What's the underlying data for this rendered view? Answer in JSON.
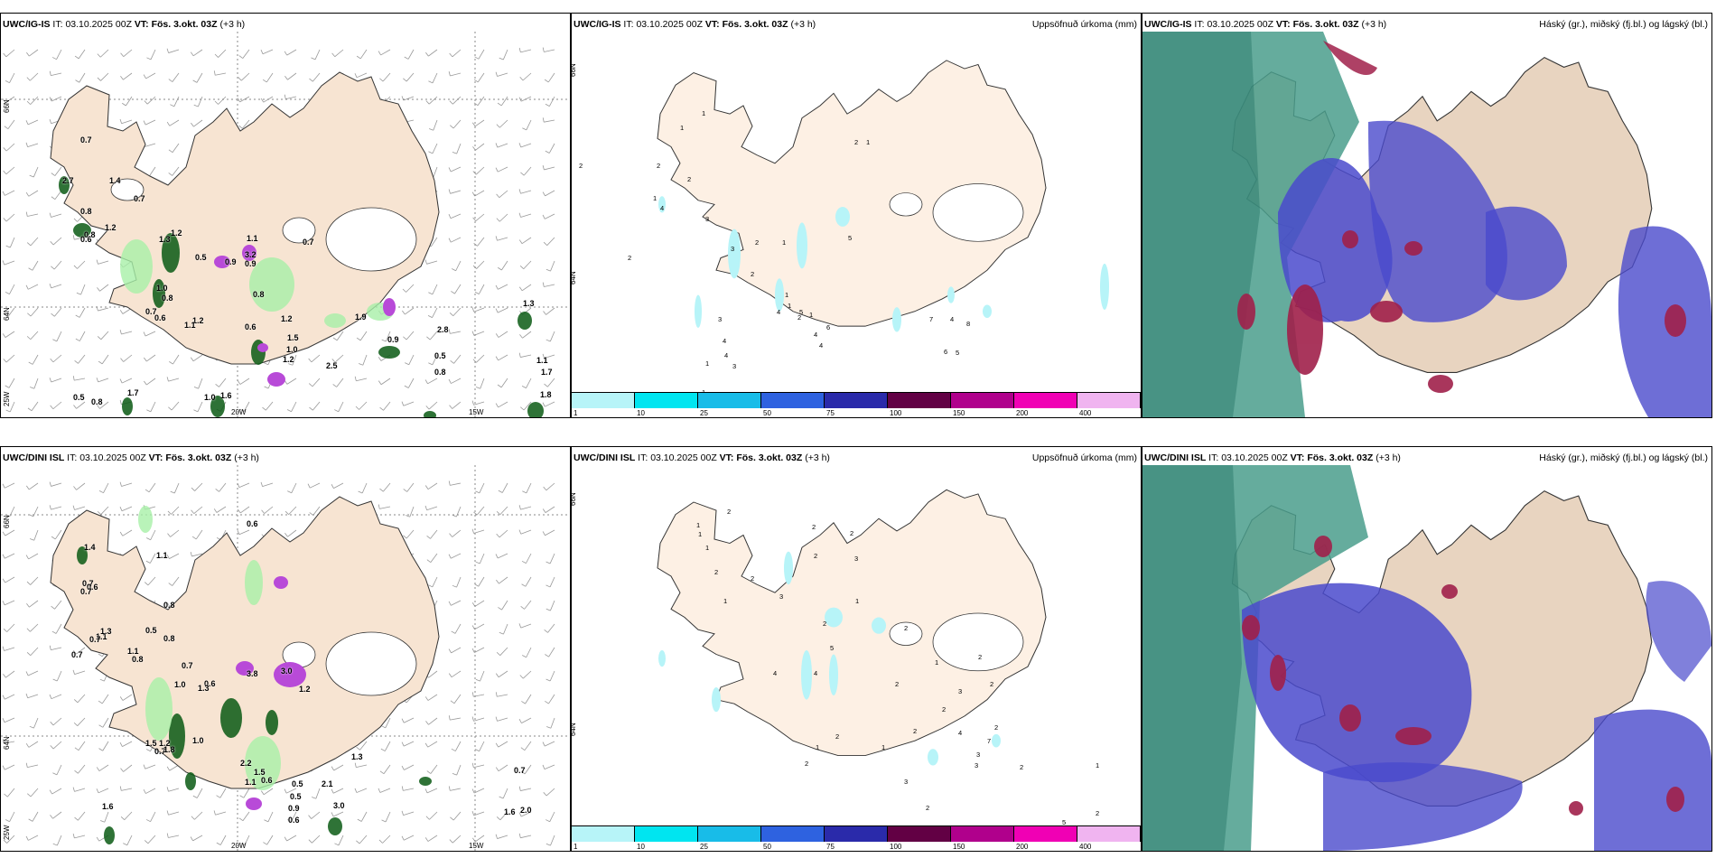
{
  "panels": {
    "top_left": {
      "model": "UWC/IG-IS",
      "it_label": "IT:",
      "it_value": "03.10.2025 00Z",
      "vt_label": "VT:",
      "vt_value": "Fös. 3.okt. 03Z",
      "lead": "(+3 h)"
    },
    "top_mid": {
      "model": "UWC/IG-IS",
      "it_label": "IT:",
      "it_value": "03.10.2025 00Z",
      "vt_label": "VT:",
      "vt_value": "Fös. 3.okt. 03Z",
      "lead": "(+3 h)",
      "title_right": "Uppsöfnuð úrkoma (mm)"
    },
    "top_right": {
      "model": "UWC/IG-IS",
      "it_label": "IT:",
      "it_value": "03.10.2025 00Z",
      "vt_label": "VT:",
      "vt_value": "Fös. 3.okt. 03Z",
      "lead": "(+3 h)",
      "title_right": "Háský (gr.), miðský (fj.bl.) og lágský (bl.)"
    },
    "bot_left": {
      "model": "UWC/DINI ISL",
      "it_label": "IT:",
      "it_value": "03.10.2025 00Z",
      "vt_label": "VT:",
      "vt_value": "Fös. 3.okt. 03Z",
      "lead": "(+3 h)"
    },
    "bot_mid": {
      "model": "UWC/DINI ISL",
      "it_label": "IT:",
      "it_value": "03.10.2025 00Z",
      "vt_label": "VT:",
      "vt_value": "Fös. 3.okt. 03Z",
      "lead": "(+3 h)",
      "title_right": "Uppsöfnuð úrkoma (mm)"
    },
    "bot_right": {
      "model": "UWC/DINI ISL",
      "it_label": "IT:",
      "it_value": "03.10.2025 00Z",
      "vt_label": "VT:",
      "vt_value": "Fös. 3.okt. 03Z",
      "lead": "(+3 h)",
      "title_right": "Háský (gr.), miðský (fj.bl.) og lágský (bl.)"
    }
  },
  "grid_labels": {
    "lat_66": "66N",
    "lat_64": "64N",
    "lon_25": "25W",
    "lon_20": "20W",
    "lon_15": "15W"
  },
  "colorbar": {
    "labels": [
      "1",
      "10",
      "25",
      "50",
      "75",
      "100",
      "150",
      "200",
      "400"
    ],
    "colors": [
      "#b7f4f8",
      "#00e5f0",
      "#18bce8",
      "#2e62e0",
      "#2a2aaa",
      "#620044",
      "#b0008c",
      "#f000b4",
      "#f0b4f0"
    ]
  },
  "gust_values_top": [
    "0.7",
    "2.7",
    "1.4",
    "0.7",
    "0.8",
    "1.2",
    "0.6",
    "1.2",
    "0.8",
    "1.3",
    "0.5",
    "0.9",
    "1.1",
    "3.2",
    "0.7",
    "0.9",
    "0.8",
    "1.0",
    "0.8",
    "0.6",
    "0.7",
    "1.2",
    "1.1",
    "0.6",
    "1.2",
    "1.5",
    "1.0",
    "1.2",
    "1.9",
    "2.5",
    "2.8",
    "0.9",
    "0.5",
    "0.8",
    "1.1",
    "1.7",
    "0.5",
    "0.8",
    "1.7",
    "1.0",
    "1.6",
    "1.3",
    "1.8"
  ],
  "gust_values_bot": [
    "0.6",
    "1.4",
    "1.1",
    "0.7",
    "0.6",
    "0.7",
    "0.8",
    "0.5",
    "0.8",
    "0.7",
    "1.1",
    "1.3",
    "0.7",
    "1.1",
    "0.8",
    "0.7",
    "1.0",
    "0.6",
    "1.3",
    "3.8",
    "3.0",
    "1.2",
    "1.2",
    "1.5",
    "1.0",
    "0.7",
    "1.8",
    "2.2",
    "1.5",
    "1.1",
    "0.6",
    "0.5",
    "1.6",
    "2.1",
    "0.9",
    "0.6",
    "3.0",
    "0.5",
    "1.3",
    "0.7",
    "2.0",
    "1.6"
  ],
  "precip_values_top": [
    "1",
    "2",
    "1",
    "2",
    "1",
    "2",
    "2",
    "3",
    "1",
    "4",
    "5",
    "3",
    "2",
    "1",
    "1",
    "4",
    "2",
    "1",
    "4",
    "4",
    "4",
    "5",
    "1",
    "1",
    "3",
    "2",
    "1",
    "5",
    "6",
    "7",
    "6",
    "8",
    "2",
    "3",
    "4",
    "4"
  ],
  "precip_values_bot": [
    "1",
    "2",
    "1",
    "2",
    "2",
    "1",
    "2",
    "3",
    "2",
    "1",
    "2",
    "3",
    "2",
    "1",
    "2",
    "4",
    "5",
    "4",
    "1",
    "2",
    "2",
    "3",
    "2",
    "2",
    "1",
    "2",
    "1",
    "2",
    "3",
    "2",
    "7",
    "2",
    "3",
    "4",
    "3",
    "1",
    "2",
    "5",
    "2",
    "2"
  ],
  "colors": {
    "land": "#f7e4d2",
    "land_alt": "#fdf0e4",
    "green_dark": "#0a5a14",
    "green_light": "#a8f0a8",
    "violet": "#b84ad8",
    "cloud_teal": "#4a9e8c",
    "cloud_blue": "#4a4acc",
    "cloud_red": "#a0204a"
  }
}
